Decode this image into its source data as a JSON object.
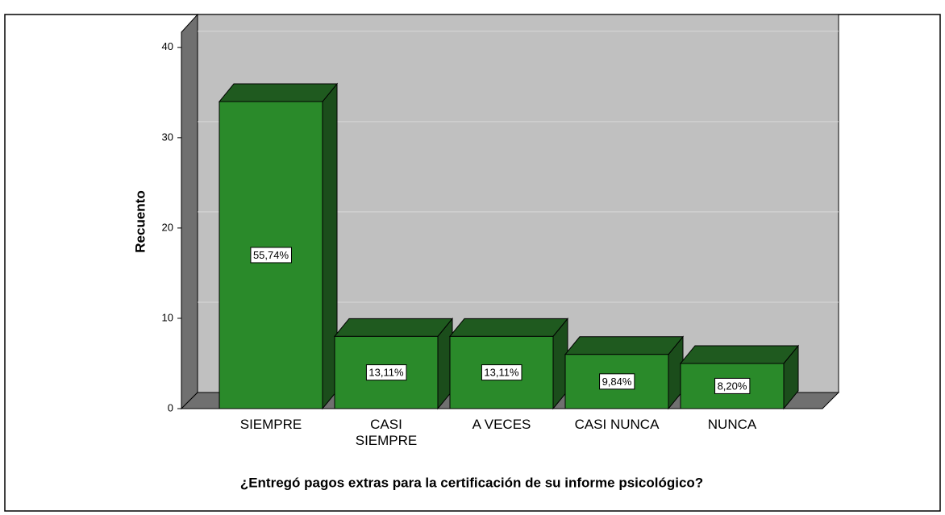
{
  "chart_data": {
    "type": "bar3d",
    "categories": [
      "SIEMPRE",
      "CASI SIEMPRE",
      "A VECES",
      "CASI NUNCA",
      "NUNCA"
    ],
    "values": [
      34,
      8,
      8,
      6,
      5
    ],
    "percent_labels": [
      "55,74%",
      "13,11%",
      "13,11%",
      "9,84%",
      "8,20%"
    ],
    "color": "#2a8a2a",
    "xlabel": "¿Entregó pagos extras para la certificación de su informe psicológico?",
    "ylabel": "Recuento",
    "ylim": [
      0,
      41.5
    ],
    "yticks": [
      0,
      10,
      20,
      30,
      40
    ],
    "grid": true
  }
}
